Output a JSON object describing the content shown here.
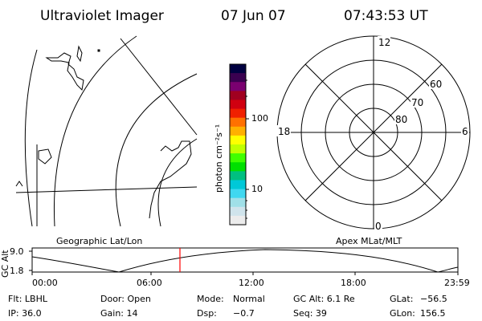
{
  "header": {
    "title": "Ultraviolet Imager",
    "date": "07 Jun 07",
    "time": "07:43:53 UT"
  },
  "colorbar": {
    "unit_label": "photon cm⁻²s⁻¹",
    "tick_100": "100",
    "tick_10": "10",
    "colors": [
      "#000040",
      "#3a0050",
      "#7a0070",
      "#a00020",
      "#d00010",
      "#f02000",
      "#ff7000",
      "#ffb000",
      "#ffff00",
      "#c0ff00",
      "#40ff00",
      "#00e000",
      "#00c080",
      "#00c8d8",
      "#40d8f0",
      "#a0e0e8",
      "#d0e4ec",
      "#ececec"
    ]
  },
  "polar": {
    "labels": {
      "top": "12",
      "bottom": "0",
      "left": "18",
      "right": "6",
      "lat60": "60",
      "lat70": "70",
      "lat80": "80"
    }
  },
  "map": {
    "left_label": "Geographic Lat/Lon",
    "right_label": "Apex MLat/MLT"
  },
  "timeline": {
    "ylabel": "GC Alt",
    "ytick_top": "9.0",
    "ytick_bottom": "1.8",
    "xticks": [
      "00:00",
      "06:00",
      "12:00",
      "18:00",
      "23:59"
    ],
    "marker_color": "#ff0000"
  },
  "info": {
    "row1": {
      "flt": "Flt: LBHL",
      "door": "Door: Open",
      "mode_label": "Mode:",
      "mode_value": "Normal",
      "gcalt": "GC Alt: 6.1 Re",
      "glat_label": "GLat:",
      "glat_value": "−56.5"
    },
    "row2": {
      "ip": "IP: 36.0",
      "gain": "Gain: 14",
      "dsp_label": "Dsp:",
      "dsp_value": "−0.7",
      "seq": "Seq: 39",
      "glon_label": "GLon:",
      "glon_value": "156.5"
    }
  }
}
